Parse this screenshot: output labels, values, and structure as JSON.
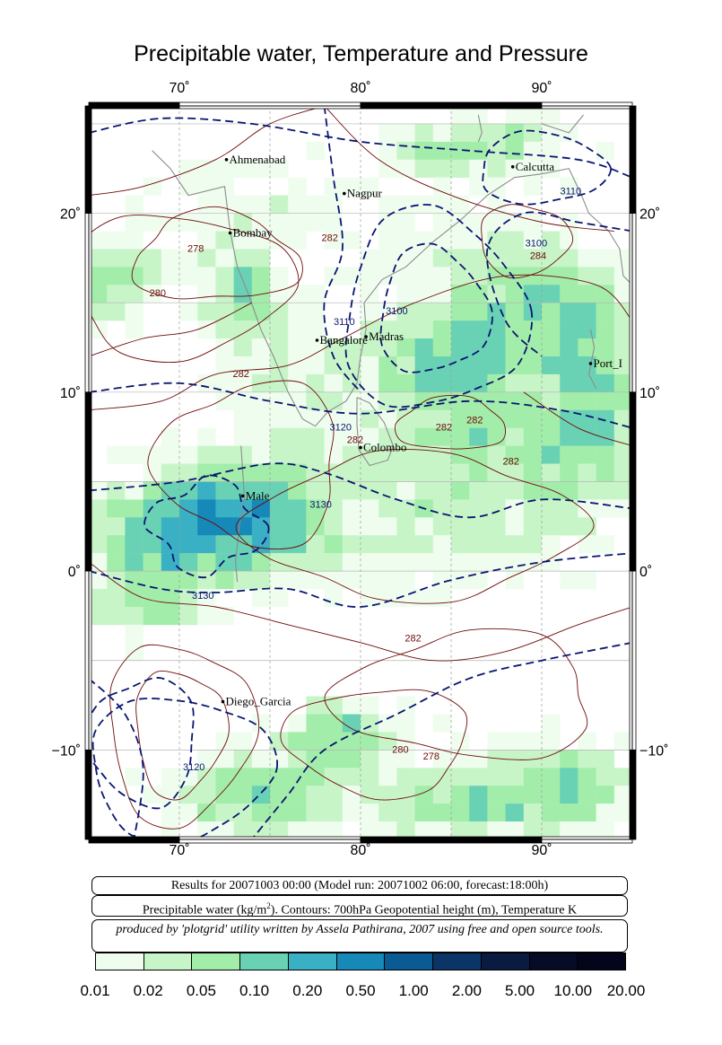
{
  "title": "Precipitable water, Temperature and Pressure",
  "axes": {
    "lon_ticks": [
      {
        "value": 70,
        "label": "70˚"
      },
      {
        "value": 80,
        "label": "80˚"
      },
      {
        "value": 90,
        "label": "90˚"
      }
    ],
    "lat_ticks": [
      {
        "value": 20,
        "label": "20˚"
      },
      {
        "value": 10,
        "label": "10˚"
      },
      {
        "value": 0,
        "label": "0˚"
      },
      {
        "value": -10,
        "label": "−10˚"
      }
    ],
    "lon_range": [
      65,
      95
    ],
    "lat_range": [
      -15,
      26
    ]
  },
  "cities": [
    {
      "name": "Ahmenabad",
      "lon": 72.6,
      "lat": 23.0
    },
    {
      "name": "Calcutta",
      "lon": 88.4,
      "lat": 22.6
    },
    {
      "name": "Nagpur",
      "lon": 79.1,
      "lat": 21.1
    },
    {
      "name": "Bombay",
      "lon": 72.8,
      "lat": 18.9
    },
    {
      "name": "Madras",
      "lon": 80.3,
      "lat": 13.1
    },
    {
      "name": "Bangalore",
      "lon": 77.6,
      "lat": 12.9
    },
    {
      "name": "Port_I",
      "lon": 92.7,
      "lat": 11.6
    },
    {
      "name": "Colombo",
      "lon": 80.0,
      "lat": 6.9
    },
    {
      "name": "Male",
      "lon": 73.5,
      "lat": 4.2
    },
    {
      "name": "Diego_Garcia",
      "lon": 72.4,
      "lat": -7.3
    }
  ],
  "contour_labels": [
    {
      "text": "3110",
      "lon": 91.6,
      "lat": 21.2,
      "kind": "height"
    },
    {
      "text": "3100",
      "lon": 89.7,
      "lat": 18.3,
      "kind": "height"
    },
    {
      "text": "284",
      "lon": 89.8,
      "lat": 17.6,
      "kind": "temp"
    },
    {
      "text": "278",
      "lon": 70.9,
      "lat": 18.0,
      "kind": "temp"
    },
    {
      "text": "282",
      "lon": 78.3,
      "lat": 18.6,
      "kind": "temp"
    },
    {
      "text": "280",
      "lon": 68.8,
      "lat": 15.5,
      "kind": "temp"
    },
    {
      "text": "3110",
      "lon": 79.1,
      "lat": 13.9,
      "kind": "height"
    },
    {
      "text": "3100",
      "lon": 82.0,
      "lat": 14.5,
      "kind": "height"
    },
    {
      "text": "282",
      "lon": 73.4,
      "lat": 11.0,
      "kind": "temp"
    },
    {
      "text": "3120",
      "lon": 78.9,
      "lat": 8.0,
      "kind": "height"
    },
    {
      "text": "282",
      "lon": 79.7,
      "lat": 7.3,
      "kind": "temp"
    },
    {
      "text": "282",
      "lon": 84.6,
      "lat": 8.0,
      "kind": "temp"
    },
    {
      "text": "282",
      "lon": 86.3,
      "lat": 8.4,
      "kind": "temp"
    },
    {
      "text": "282",
      "lon": 88.3,
      "lat": 6.1,
      "kind": "temp"
    },
    {
      "text": "3130",
      "lon": 77.8,
      "lat": 3.7,
      "kind": "height"
    },
    {
      "text": "3130",
      "lon": 71.3,
      "lat": -1.4,
      "kind": "height"
    },
    {
      "text": "282",
      "lon": 82.9,
      "lat": -3.8,
      "kind": "temp"
    },
    {
      "text": "280",
      "lon": 82.2,
      "lat": -10.0,
      "kind": "temp"
    },
    {
      "text": "278",
      "lon": 83.9,
      "lat": -10.4,
      "kind": "temp"
    },
    {
      "text": "3120",
      "lon": 70.8,
      "lat": -11.0,
      "kind": "height"
    }
  ],
  "info": {
    "results": "Results for 20071003 00:00 (Model run: 20071002 06:00, forecast:18:00h)",
    "desc_pre": "Precipitable water (kg/m",
    "desc_sup": "2",
    "desc_post": ").  Contours: 700hPa Geopotential height (m), Temperature K",
    "credit": "produced by 'plotgrid' utility written by Assela Pathirana, 2007 using free and open source tools."
  },
  "legend": {
    "labels": [
      "0.01",
      "0.02",
      "0.05",
      "0.10",
      "0.20",
      "0.50",
      "1.00",
      "2.00",
      "5.00",
      "10.00",
      "20.00"
    ],
    "colors": [
      "#effdef",
      "#c8f5c8",
      "#a3edaa",
      "#6ad2b4",
      "#3ab0c4",
      "#1689b8",
      "#0a5a94",
      "#0b3566",
      "#0a1a40",
      "#060c28",
      "#03061a"
    ]
  }
}
